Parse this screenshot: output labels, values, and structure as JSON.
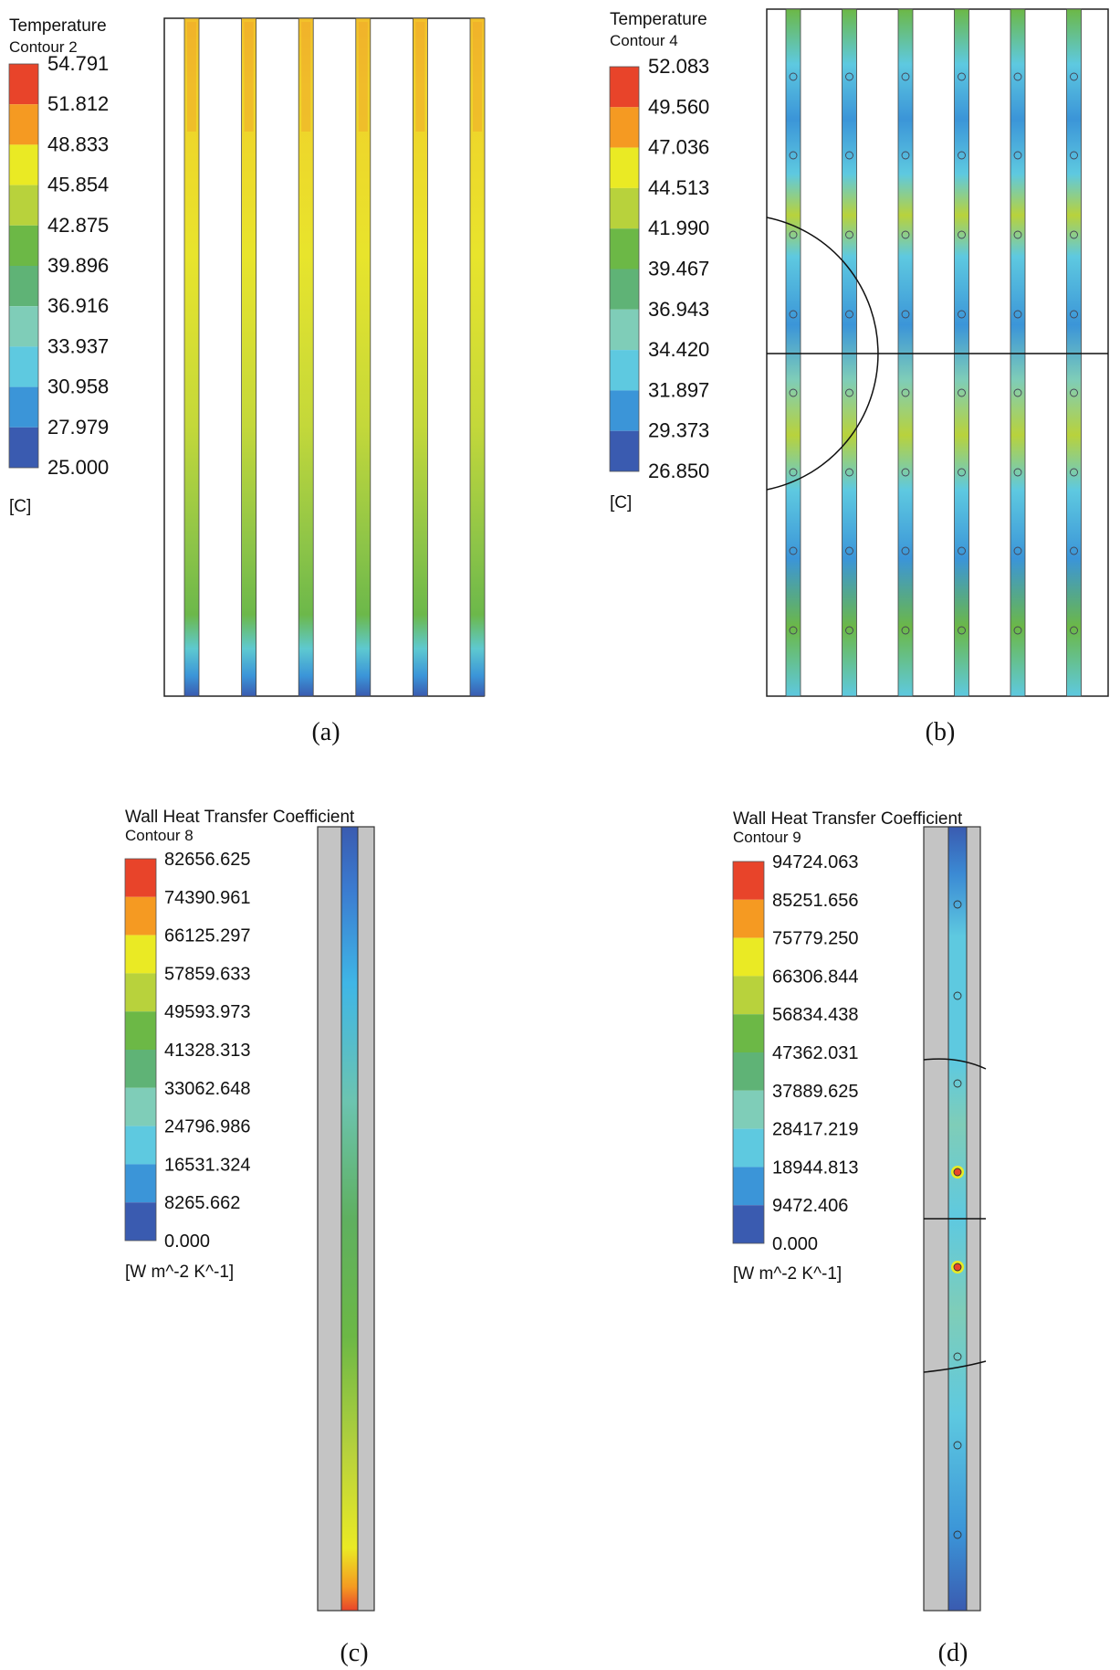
{
  "chart_data": [
    {
      "type": "heatmap",
      "panel_label": "(a)",
      "legend_title": "Temperature",
      "legend_subtitle": "Contour 2",
      "unit": "[C]",
      "ticks": [
        "54.791",
        "51.812",
        "48.833",
        "45.854",
        "42.875",
        "39.896",
        "36.916",
        "33.937",
        "30.958",
        "27.979",
        "25.000"
      ],
      "colors": [
        "#e8442a",
        "#f59a22",
        "#eaea24",
        "#b8d23c",
        "#6cb846",
        "#5fb376",
        "#7fcdb8",
        "#5ec9e0",
        "#3b95d8",
        "#3a5bb0"
      ],
      "range": [
        25.0,
        54.791
      ],
      "channels": 6
    },
    {
      "type": "heatmap",
      "panel_label": "(b)",
      "legend_title": "Temperature",
      "legend_subtitle": "Contour 4",
      "unit": "[C]",
      "ticks": [
        "52.083",
        "49.560",
        "47.036",
        "44.513",
        "41.990",
        "39.467",
        "36.943",
        "34.420",
        "31.897",
        "29.373",
        "26.850"
      ],
      "colors": [
        "#e8442a",
        "#f59a22",
        "#eaea24",
        "#b8d23c",
        "#6cb846",
        "#5fb376",
        "#7fcdb8",
        "#5ec9e0",
        "#3b95d8",
        "#3a5bb0"
      ],
      "range": [
        26.85,
        52.083
      ],
      "channels": 6
    },
    {
      "type": "heatmap",
      "panel_label": "(c)",
      "legend_title": "Wall Heat Transfer Coefficient",
      "legend_subtitle": "Contour 8",
      "unit": "[W m^-2 K^-1]",
      "ticks": [
        "82656.625",
        "74390.961",
        "66125.297",
        "57859.633",
        "49593.973",
        "41328.313",
        "33062.648",
        "24796.986",
        "16531.324",
        "8265.662",
        "0.000"
      ],
      "colors": [
        "#e8442a",
        "#f59a22",
        "#eaea24",
        "#b8d23c",
        "#6cb846",
        "#5fb376",
        "#7fcdb8",
        "#5ec9e0",
        "#3b95d8",
        "#3a5bb0"
      ],
      "range": [
        0.0,
        82656.625
      ],
      "channels": 1
    },
    {
      "type": "heatmap",
      "panel_label": "(d)",
      "legend_title": "Wall Heat Transfer Coefficient",
      "legend_subtitle": "Contour 9",
      "unit": "[W m^-2 K^-1]",
      "ticks": [
        "94724.063",
        "85251.656",
        "75779.250",
        "66306.844",
        "56834.438",
        "47362.031",
        "37889.625",
        "28417.219",
        "18944.813",
        "9472.406",
        "0.000"
      ],
      "colors": [
        "#e8442a",
        "#f59a22",
        "#eaea24",
        "#b8d23c",
        "#6cb846",
        "#5fb376",
        "#7fcdb8",
        "#5ec9e0",
        "#3b95d8",
        "#3a5bb0"
      ],
      "range": [
        0.0,
        94724.063
      ],
      "channels": 1
    }
  ]
}
